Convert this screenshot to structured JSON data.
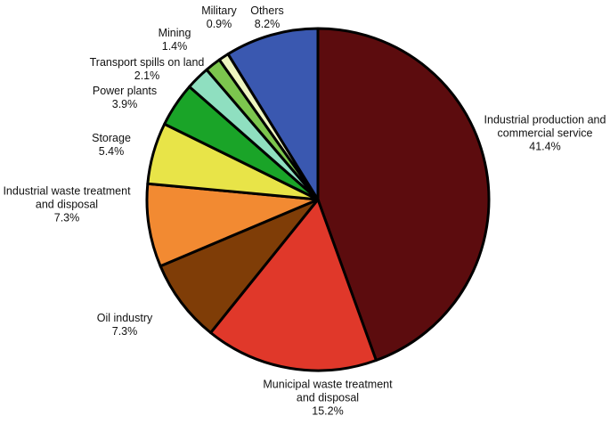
{
  "chart_data": {
    "type": "pie",
    "categories": [
      "Industrial production and\ncommercial service",
      "Municipal waste treatment\nand disposal",
      "Oil industry",
      "Industrial waste treatment\nand disposal",
      "Storage",
      "Power plants",
      "Transport spills on land",
      "Mining",
      "Military",
      "Others"
    ],
    "values": [
      41.4,
      15.2,
      7.3,
      7.3,
      5.4,
      3.9,
      2.1,
      1.4,
      0.9,
      8.2
    ],
    "value_labels": [
      "41.4%",
      "15.2%",
      "7.3%",
      "7.3%",
      "5.4%",
      "3.9%",
      "2.1%",
      "1.4%",
      "0.9%",
      "8.2%"
    ],
    "colors": [
      "#5c0c0e",
      "#e0382a",
      "#7f3d07",
      "#f28a32",
      "#e8e448",
      "#1aa428",
      "#8fdfc0",
      "#7cc64e",
      "#eef5c0",
      "#3a58b0"
    ]
  }
}
